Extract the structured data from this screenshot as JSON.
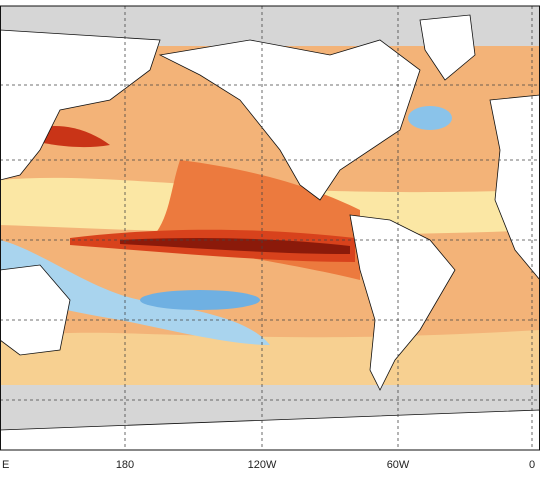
{
  "map": {
    "longitude_labels": [
      "E",
      "180",
      "120W",
      "60W",
      "0"
    ]
  }
}
